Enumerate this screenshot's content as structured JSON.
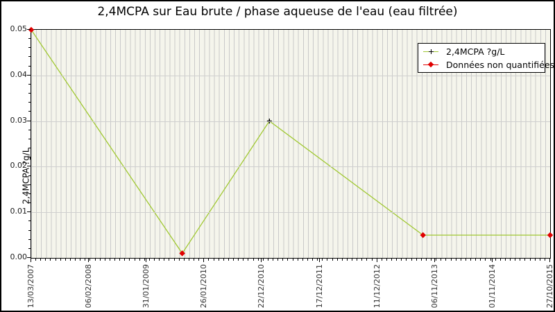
{
  "chart_data": {
    "type": "line",
    "title": "2,4MCPA sur Eau brute / phase aqueuse de l'eau (eau filtrée)",
    "xlabel": "",
    "ylabel": "2,4MCPA ?g/L",
    "ylim": [
      0,
      0.05
    ],
    "y_major_step": 0.01,
    "y_minor_step": 0.002,
    "y_tick_labels": [
      "0.00",
      "0.01",
      "0.02",
      "0.03",
      "0.04",
      "0.05"
    ],
    "x_tick_labels": [
      "13/03/2007",
      "06/02/2008",
      "31/01/2009",
      "26/01/2010",
      "22/12/2010",
      "17/12/2011",
      "11/12/2012",
      "06/11/2013",
      "01/11/2014",
      "27/10/2015"
    ],
    "x_minor_tick_interval": "monthly",
    "x_minor_divisions": 105,
    "grid": {
      "horizontal_major": true,
      "vertical_minor_stripes": true
    },
    "legend": {
      "position": "top-right",
      "items": [
        {
          "label": "2,4MCPA ?g/L",
          "marker": "black-plus",
          "line_color": "#a0c832"
        },
        {
          "label": "Données non quantifiées",
          "marker": "red-diamond",
          "line_color": "#e00000"
        }
      ]
    },
    "series": [
      {
        "name": "2,4MCPA ?g/L",
        "line_color": "#a0c832",
        "points": [
          {
            "date": "13/03/2007",
            "value": 0.05,
            "quantified": false,
            "x_frac": 0.0
          },
          {
            "date": "13/09/2009 (est.)",
            "value": 0.001,
            "quantified": false,
            "x_frac": 0.291
          },
          {
            "date": "12/02/2011 (est.)",
            "value": 0.03,
            "quantified": true,
            "x_frac": 0.459
          },
          {
            "date": "03/09/2013 (est.)",
            "value": 0.005,
            "quantified": false,
            "x_frac": 0.755
          },
          {
            "date": "27/10/2015",
            "value": 0.005,
            "quantified": false,
            "x_frac": 1.0
          }
        ]
      }
    ],
    "colors": {
      "series_line": "#a0c832",
      "non_quantified_marker": "#e00000",
      "quantified_marker": "#000000",
      "plot_background": "#f5f5ec",
      "stripe_line": "#c9c9c9",
      "grid_line": "#cfcfcf",
      "axis": "#000000"
    }
  }
}
